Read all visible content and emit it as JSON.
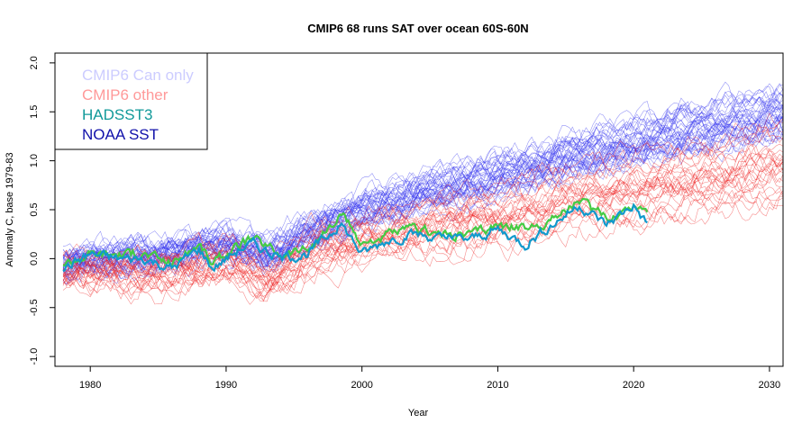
{
  "chart_data": {
    "type": "line",
    "title": "CMIP6 68 runs SAT over ocean 60S-60N",
    "xlabel": "Year",
    "ylabel": "Anomaly C, base 1979-83",
    "xlim": [
      1977.4,
      2031.0
    ],
    "ylim": [
      -1.1,
      2.1
    ],
    "x_ticks": [
      1980,
      1990,
      2000,
      2010,
      2020,
      2030
    ],
    "y_ticks": [
      -1.0,
      -0.5,
      0.0,
      0.5,
      1.0,
      1.5,
      2.0
    ],
    "x_tick_labels": [
      "1980",
      "1990",
      "2000",
      "2010",
      "2020",
      "2030"
    ],
    "y_tick_labels": [
      "-1.0",
      "-0.5",
      "0.0",
      "0.5",
      "1.0",
      "1.5",
      "2.0"
    ],
    "legend_position": "top-left",
    "legend": [
      {
        "label": "CMIP6 Can only",
        "color": "#ccccff"
      },
      {
        "label": "CMIP6 other",
        "color": "#ff9999"
      },
      {
        "label": "HADSST3",
        "color": "#119999"
      },
      {
        "label": "NOAA SST",
        "color": "#1111aa"
      }
    ],
    "ensemble_groups": [
      {
        "name": "CMIP6 Can only",
        "color": "#3333ee",
        "runs": 40,
        "x_range": [
          1978,
          2031
        ],
        "mean_trend": [
          [
            1978,
            -0.05
          ],
          [
            1985,
            0.05
          ],
          [
            1990,
            0.18
          ],
          [
            1993,
            0.05
          ],
          [
            1997,
            0.35
          ],
          [
            2000,
            0.5
          ],
          [
            2005,
            0.7
          ],
          [
            2010,
            0.85
          ],
          [
            2015,
            1.05
          ],
          [
            2020,
            1.2
          ],
          [
            2025,
            1.35
          ],
          [
            2031,
            1.5
          ]
        ]
      },
      {
        "name": "CMIP6 other",
        "color": "#ee2222",
        "runs": 28,
        "x_range": [
          1978,
          2031
        ],
        "mean_trend": [
          [
            1978,
            -0.05
          ],
          [
            1985,
            -0.05
          ],
          [
            1990,
            0.1
          ],
          [
            1993,
            -0.1
          ],
          [
            1997,
            0.25
          ],
          [
            2000,
            0.35
          ],
          [
            2005,
            0.5
          ],
          [
            2010,
            0.6
          ],
          [
            2015,
            0.8
          ],
          [
            2020,
            0.95
          ],
          [
            2025,
            1.05
          ],
          [
            2031,
            1.2
          ]
        ]
      }
    ],
    "series": [
      {
        "name": "HADSST3",
        "color": "#44cc44",
        "x": [
          1978,
          1980,
          1982,
          1984,
          1986,
          1988,
          1989,
          1991,
          1992,
          1994,
          1996,
          1998,
          1998.5,
          2000,
          2002,
          2004,
          2006,
          2008,
          2010,
          2012,
          2014,
          2016,
          2018,
          2020,
          2021
        ],
        "y": [
          -0.05,
          0.05,
          0.05,
          0.05,
          -0.05,
          0.15,
          -0.05,
          0.15,
          0.2,
          0.05,
          0.1,
          0.35,
          0.45,
          0.15,
          0.25,
          0.3,
          0.25,
          0.25,
          0.35,
          0.3,
          0.4,
          0.6,
          0.4,
          0.55,
          0.5
        ]
      },
      {
        "name": "NOAA SST",
        "color": "#1199cc",
        "x": [
          1978,
          1980,
          1982,
          1984,
          1986,
          1988,
          1989,
          1991,
          1992,
          1994,
          1996,
          1998,
          1998.5,
          2000,
          2002,
          2004,
          2006,
          2008,
          2010,
          2012,
          2014,
          2016,
          2018,
          2020,
          2021
        ],
        "y": [
          -0.1,
          0.05,
          0.0,
          0.0,
          -0.1,
          0.1,
          -0.1,
          0.1,
          0.15,
          0.0,
          0.05,
          0.3,
          0.35,
          0.05,
          0.2,
          0.25,
          0.2,
          0.2,
          0.3,
          0.15,
          0.35,
          0.55,
          0.35,
          0.55,
          0.35
        ]
      }
    ]
  }
}
